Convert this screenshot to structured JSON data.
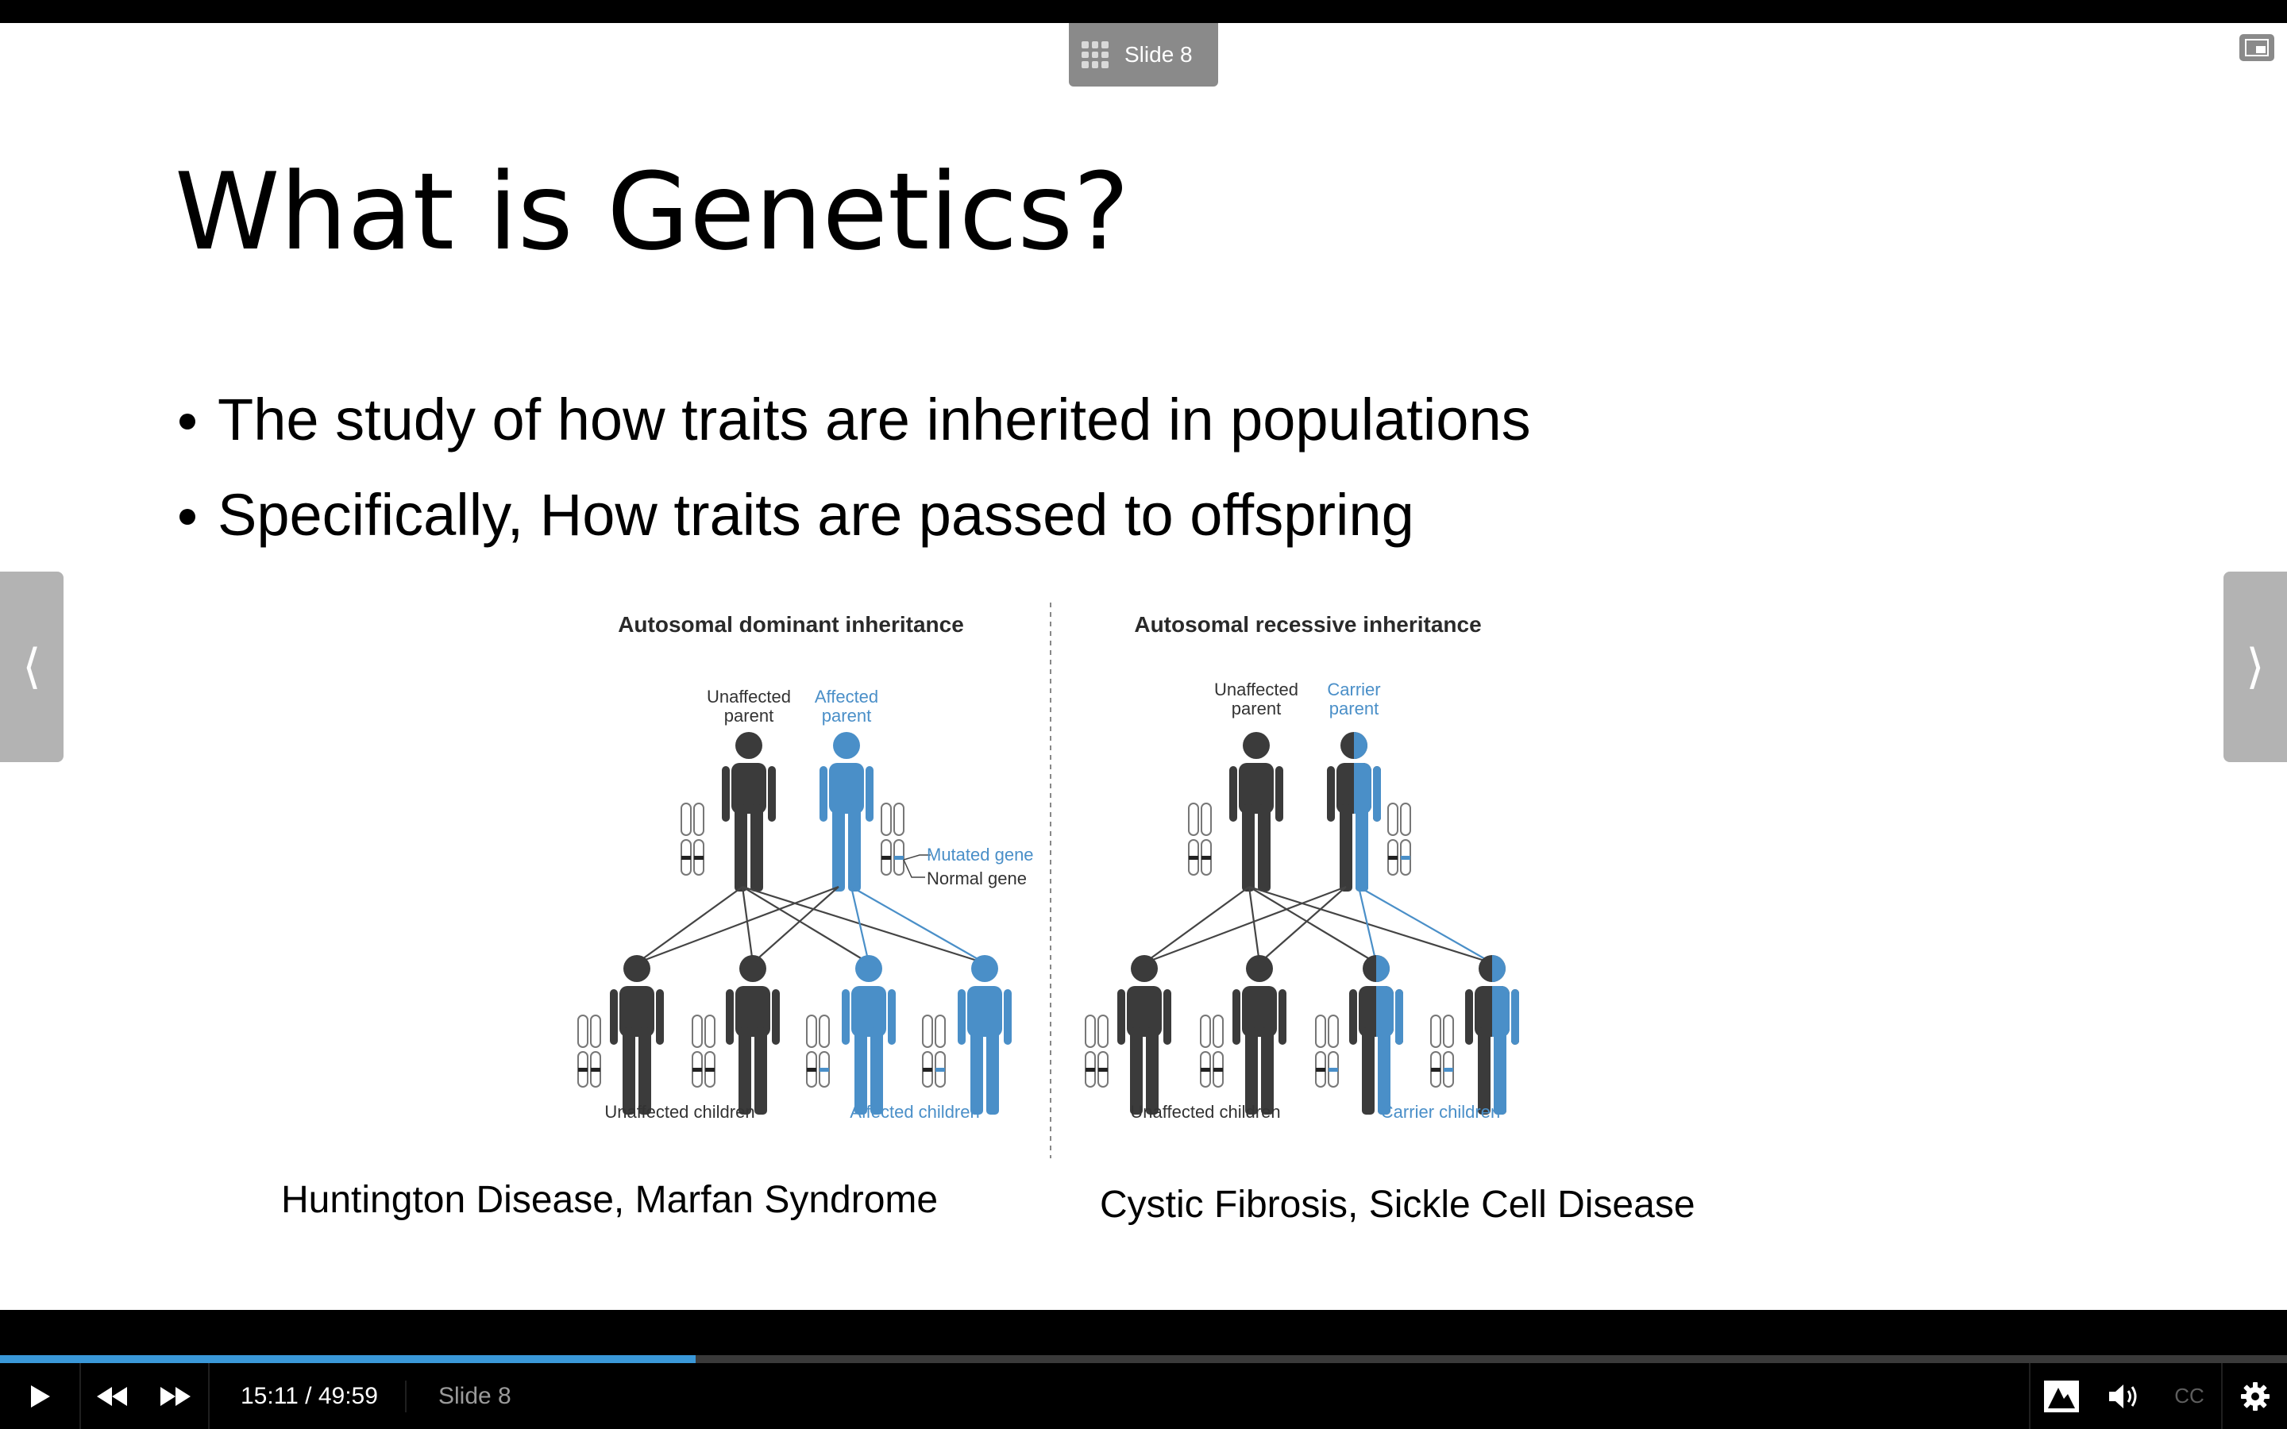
{
  "slide_badge": {
    "label": "Slide 8",
    "icon": "grid-icon"
  },
  "slide": {
    "title": "What is Genetics?",
    "bullets": [
      "The study of how traits are inherited in populations",
      "Specifically, How traits are passed to offspring"
    ]
  },
  "diagram": {
    "left_title": "Autosomal dominant inheritance",
    "right_title": "Autosomal recessive inheritance",
    "left_parent1": [
      "Unaffected",
      "parent"
    ],
    "left_parent2": [
      "Affected",
      "parent"
    ],
    "right_parent1": [
      "Unaffected",
      "parent"
    ],
    "right_parent2": [
      "Carrier",
      "parent"
    ],
    "legend_mutated": "Mutated gene",
    "legend_normal": "Normal gene",
    "left_children_a": "Unaffected children",
    "left_children_b": "Affected children",
    "right_children_a": "Unaffected children",
    "right_children_b": "Carrier children"
  },
  "captions": {
    "left": "Huntington Disease, Marfan Syndrome",
    "right": "Cystic Fibrosis, Sickle Cell Disease"
  },
  "player": {
    "time": "15:11 / 49:59",
    "slide_label": "Slide 8",
    "progress": 0.304,
    "cc": "CC",
    "accent": "#3a98d8"
  },
  "colors": {
    "dark_figure": "#3b3b3b",
    "blue_figure": "#4a8fc8"
  }
}
